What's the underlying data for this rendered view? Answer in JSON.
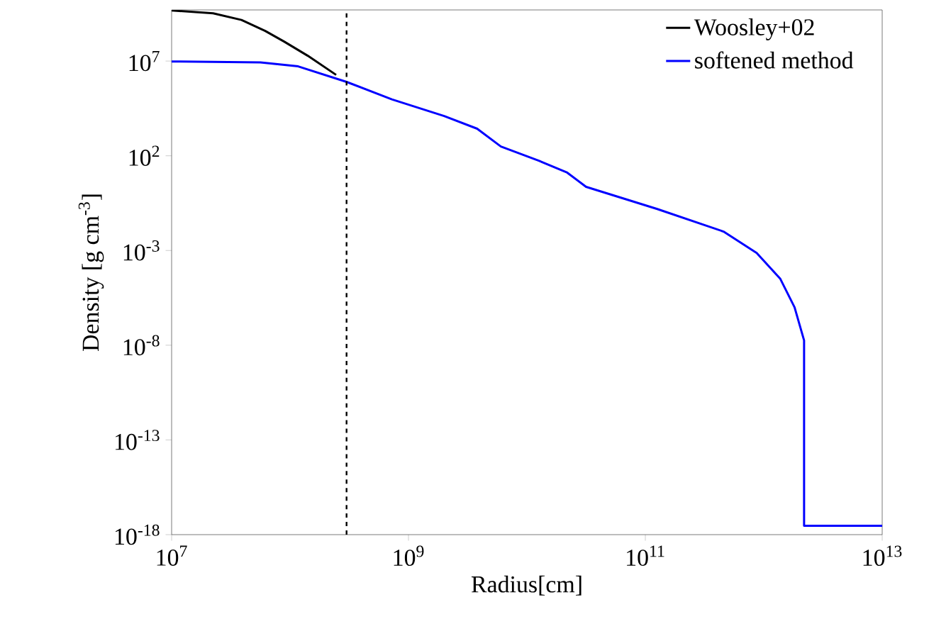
{
  "chart_data": {
    "type": "line",
    "xlabel": "Radius[cm]",
    "ylabel": "Density [g cm$^{-3}$]",
    "log": "xy",
    "xlim": [
      10000000.0,
      10000000000000.0
    ],
    "ylim": [
      1e-18,
      5000000000.0
    ],
    "xticks": [
      {
        "value": 10000000.0,
        "label": "10$^{7}$"
      },
      {
        "value": 1000000000.0,
        "label": "10$^{9}$"
      },
      {
        "value": 100000000000.0,
        "label": "10$^{11}$"
      },
      {
        "value": 10000000000000.0,
        "label": "10$^{13}$"
      }
    ],
    "yticks": [
      {
        "value": 1e-18,
        "label": "10$^{-18}$"
      },
      {
        "value": 1e-13,
        "label": "10$^{-13}$"
      },
      {
        "value": 1e-08,
        "label": "10$^{-8}$"
      },
      {
        "value": 0.001,
        "label": "10$^{-3}$"
      },
      {
        "value": 100,
        "label": "10$^{2}$"
      },
      {
        "value": 10000000.0,
        "label": "10$^{7}$"
      }
    ],
    "legend": "top right",
    "grid": false,
    "marker": "none",
    "line_style": "solid",
    "ref_lines": [
      {
        "axis": "x",
        "value": 300000000.0,
        "color": "#000000",
        "line_style": "dashed"
      }
    ],
    "series": [
      {
        "name": "Woosley+02",
        "color": "#000000",
        "x": [
          10000000.0,
          22400000.0,
          38900000.0,
          61700000.0,
          89100000.0,
          141000000.0,
          245000000.0
        ],
        "values": [
          4680000000.0,
          3310000000.0,
          1480000000.0,
          389000000.0,
          107000000.0,
          19100000.0,
          1860000.0
        ]
      },
      {
        "name": "softened method",
        "color": "#0000ff",
        "x": [
          10000000.0,
          56200000.0,
          117000000.0,
          300000000.0,
          724000000.0,
          2000000000.0,
          3800000000.0,
          6030000000.0,
          12600000000.0,
          21900000000.0,
          31600000000.0,
          126000000000.0,
          457000000000.0,
          871000000000.0,
          1380000000000.0,
          1820000000000.0,
          2190000000000.0,
          2190000000000.0,
          10000000000000.0
        ],
        "values": [
          9550000.0,
          8510000.0,
          5250000.0,
          794000.0,
          95500.0,
          12600.0,
          2690.0,
          309,
          55,
          12.9,
          2.29,
          0.155,
          0.01,
          0.000741,
          3.16e-05,
          1e-06,
          1.78e-08,
          2.95e-18,
          2.95e-18
        ]
      }
    ]
  }
}
